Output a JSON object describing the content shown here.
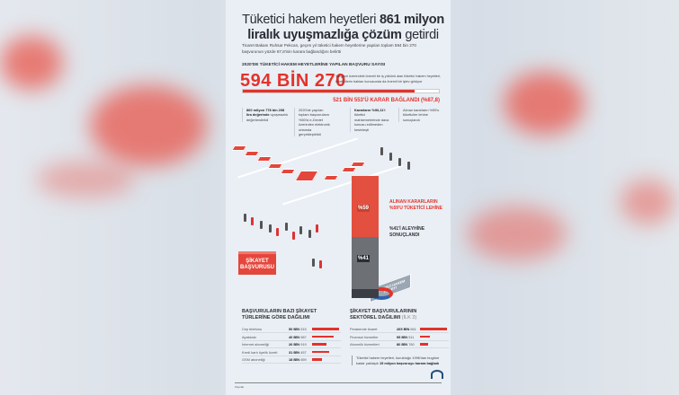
{
  "title": {
    "part1": "Tüketici hakem heyetleri ",
    "bold1": "861 milyon",
    "bold2": "liralık uyuşmazlığa çözüm",
    "part2": " getirdi"
  },
  "subtitle": "Ticaret Bakanı Ruhsar Pekcan, geçen yıl tüketici hakem heyetlerine yapılan toplam 594 bin 270 başvurunun yüzde 87,8'inin karara bağlandığını belirtti",
  "applications": {
    "label": "2020'DE TÜKETİCİ HAKEM HEYETLERİNE YAPILAN BAŞVURU SAYISI",
    "total": "594 BİN 270",
    "side_text": "Yargının üzerindeki önemli bir iş yükünü alan tüketici hakem heyetleri, tüketicilerin hakları konusunda da önemli bir işlev görüyor",
    "decided_percent": 87.8,
    "decided_label": "521 BİN 553'Ü KARAR BAĞLANDI (%87,8)"
  },
  "notes": [
    {
      "bold": "860 milyon 778 bin 208 lira değerinde",
      "text": " uyuşmazlık değerlendirildi"
    },
    {
      "bold": "",
      "text": "2020'de yapılan toplam başvuruların %50'si e-Devlet üzerinden elektronik ortamda gerçekleştirildi"
    },
    {
      "bold": "Kararların %96,11'i",
      "text": " tüketici mahkemelerinde dava konusu edilmeden kesinleşti"
    },
    {
      "bold": "",
      "text": "Alınan kararların %59'u tüketiciler lehine sonuçlandı"
    }
  ],
  "illustration": {
    "heyet_label": "TÜKETİCİ HAKEM HEYETİ",
    "complaint_box": "ŞİKAYET BAŞVURUSU",
    "favor_pct": "%59",
    "against_pct": "%41",
    "favor_text": "ALINAN KARARLARIN %59'U TÜKETİCİ LEHİNE",
    "against_text": "%41'İ ALEYHİNE SONUÇLANDI"
  },
  "colors": {
    "accent": "#e4322b",
    "dark": "#2a2d33",
    "panel": "#e9eff5"
  },
  "complaint_types": {
    "title": "BAŞVURULARIN BAZI ŞİKAYET TÜRLERİNE GÖRE DAĞILIMI",
    "rows": [
      {
        "label": "Cep telefonu",
        "bold": "50 BİN",
        "rest": " 515",
        "value": 50515
      },
      {
        "label": "Ayakkabı",
        "bold": "40 BİN",
        "rest": " 587",
        "value": 40587
      },
      {
        "label": "İnternet aboneliği",
        "bold": "26 BİN",
        "rest": " 919",
        "value": 26919
      },
      {
        "label": "Kredi kartı üyelik ücreti",
        "bold": "31 BİN",
        "rest": " 457",
        "value": 31457
      },
      {
        "label": "GSM aboneliği",
        "bold": "18 BİN",
        "rest": " 659",
        "value": 18659
      }
    ]
  },
  "sector": {
    "title": "ŞİKAYET BAŞVURULARININ SEKTÖREL DAĞILIMI",
    "title_note": "(İLK 3)",
    "rows": [
      {
        "label": "Perakende ticaret",
        "bold": "265 BİN",
        "rest": " 661",
        "value": 265661
      },
      {
        "label": "Finansal hizmetler",
        "bold": "95 BİN",
        "rest": " 511",
        "value": 95511
      },
      {
        "label": "Abonelik hizmetleri",
        "bold": "80 BİN",
        "rest": " 760",
        "value": 80760
      }
    ],
    "note_pre": "Tüketici hakem heyetleri, kurulduğu 1996'dan bugüne kadar yaklaşık ",
    "note_bold": "15 milyon başvuruyu karara bağladı"
  },
  "footer": {
    "source": "Kaynak",
    "logo": "AA"
  }
}
